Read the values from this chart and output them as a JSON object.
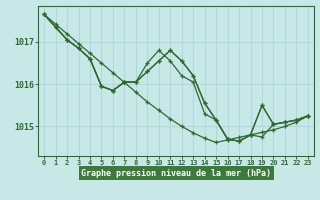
{
  "bg_color": "#c8e8e8",
  "grid_color": "#b0d8d8",
  "line_color": "#2d6a2d",
  "title": "Graphe pression niveau de la mer (hPa)",
  "title_bg": "#3a7a3a",
  "xlim": [
    -0.5,
    23.5
  ],
  "ylim": [
    1014.3,
    1017.85
  ],
  "yticks": [
    1015,
    1016,
    1017
  ],
  "xticks": [
    0,
    1,
    2,
    3,
    4,
    5,
    6,
    7,
    8,
    9,
    10,
    11,
    12,
    13,
    14,
    15,
    16,
    17,
    18,
    19,
    20,
    21,
    22,
    23
  ],
  "series1": [
    1017.65,
    1017.35,
    1017.05,
    1016.85,
    1016.6,
    1015.95,
    1015.85,
    1016.05,
    1016.05,
    1016.5,
    1016.8,
    1016.55,
    1016.2,
    1016.05,
    1015.3,
    1015.15,
    1014.7,
    1014.65,
    1014.8,
    1015.5,
    1015.05,
    1015.1,
    1015.15,
    1015.25
  ],
  "series2": [
    1017.65,
    1017.35,
    1017.05,
    1016.85,
    1016.6,
    1015.95,
    1015.85,
    1016.05,
    1016.05,
    1016.3,
    1016.55,
    1016.8,
    1016.55,
    1016.2,
    1015.55,
    1015.15,
    1014.7,
    1014.65,
    1014.8,
    1015.5,
    1015.05,
    1015.1,
    1015.15,
    1015.25
  ],
  "series3": [
    1017.65,
    1017.35,
    1017.05,
    1016.85,
    1016.6,
    1015.95,
    1015.85,
    1016.05,
    1016.05,
    1016.3,
    1016.55,
    1016.8,
    1016.55,
    1016.2,
    1015.55,
    1015.15,
    1014.7,
    1014.65,
    1014.8,
    1014.75,
    1015.05,
    1015.1,
    1015.15,
    1015.25
  ],
  "series_diag": [
    1017.65,
    1017.42,
    1017.19,
    1016.96,
    1016.73,
    1016.5,
    1016.27,
    1016.04,
    1015.81,
    1015.58,
    1015.38,
    1015.18,
    1015.0,
    1014.85,
    1014.72,
    1014.62,
    1014.68,
    1014.74,
    1014.8,
    1014.86,
    1014.92,
    1015.0,
    1015.1,
    1015.25
  ]
}
